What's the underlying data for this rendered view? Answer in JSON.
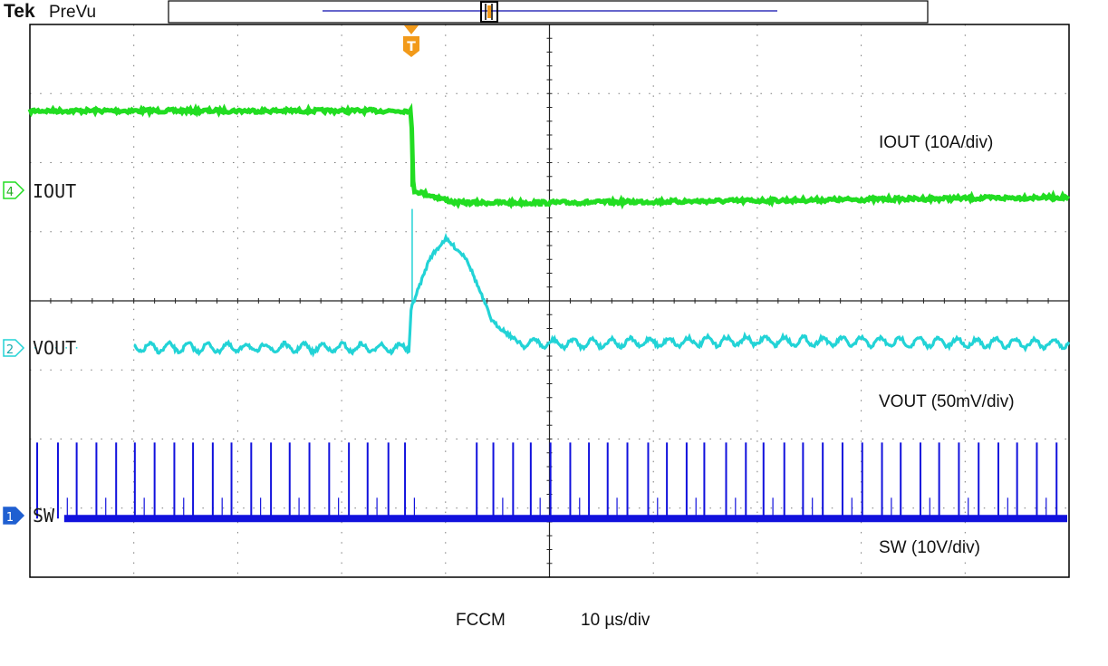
{
  "header": {
    "brand": "Tek",
    "mode": "PreVu"
  },
  "trigger": {
    "marker": "T"
  },
  "channels": [
    {
      "id": "4",
      "label": "IOUT",
      "scale": "IOUT (10A/div)",
      "color": "#22dd22"
    },
    {
      "id": "2",
      "label": "VOUT",
      "scale": "VOUT (50mV/div)",
      "color": "#22d3d6"
    },
    {
      "id": "1",
      "label": "SW",
      "scale": "SW (10V/div)",
      "color": "#1111dd"
    }
  ],
  "footer": {
    "mode": "FCCM",
    "timebase": "10 µs/div"
  },
  "colors": {
    "grid": "#7a7a7a",
    "trigger": "#f29a1a",
    "frame": "#000000"
  },
  "chart_data": {
    "type": "line",
    "x_unit": "div",
    "x_range": [
      0,
      10
    ],
    "y_range_div": [
      -4,
      4
    ],
    "trigger_x": 3.67,
    "series": [
      {
        "name": "IOUT",
        "points": [
          [
            0,
            2.75
          ],
          [
            3.67,
            2.75
          ],
          [
            3.69,
            1.6
          ],
          [
            3.8,
            1.55
          ],
          [
            4.1,
            1.42
          ],
          [
            5,
            1.42
          ],
          [
            7,
            1.45
          ],
          [
            10,
            1.5
          ]
        ]
      },
      {
        "name": "VOUT",
        "points": [
          [
            0,
            -0.68
          ],
          [
            3.65,
            -0.68
          ],
          [
            3.67,
            -0.1
          ],
          [
            3.85,
            0.62
          ],
          [
            4.0,
            0.9
          ],
          [
            4.2,
            0.62
          ],
          [
            4.45,
            -0.3
          ],
          [
            4.7,
            -0.6
          ],
          [
            5.0,
            -0.62
          ],
          [
            7,
            -0.58
          ],
          [
            10,
            -0.62
          ]
        ]
      },
      {
        "name": "SW",
        "baseline": -3.15,
        "pulse_height": 1.1,
        "pulses": [
          0.07,
          0.27,
          0.45,
          0.64,
          0.83,
          1.01,
          1.2,
          1.39,
          1.57,
          1.76,
          1.94,
          2.13,
          2.32,
          2.5,
          2.69,
          2.88,
          3.07,
          3.25,
          3.45,
          3.61,
          4.3,
          4.46,
          4.65,
          4.82,
          5.01,
          5.2,
          5.38,
          5.56,
          5.75,
          5.95,
          6.13,
          6.32,
          6.49,
          6.7,
          6.89,
          7.06,
          7.26,
          7.44,
          7.63,
          7.82,
          8.01,
          8.2,
          8.38,
          8.57,
          8.75,
          8.94,
          9.13,
          9.32,
          9.5,
          9.69,
          9.88
        ]
      }
    ]
  }
}
